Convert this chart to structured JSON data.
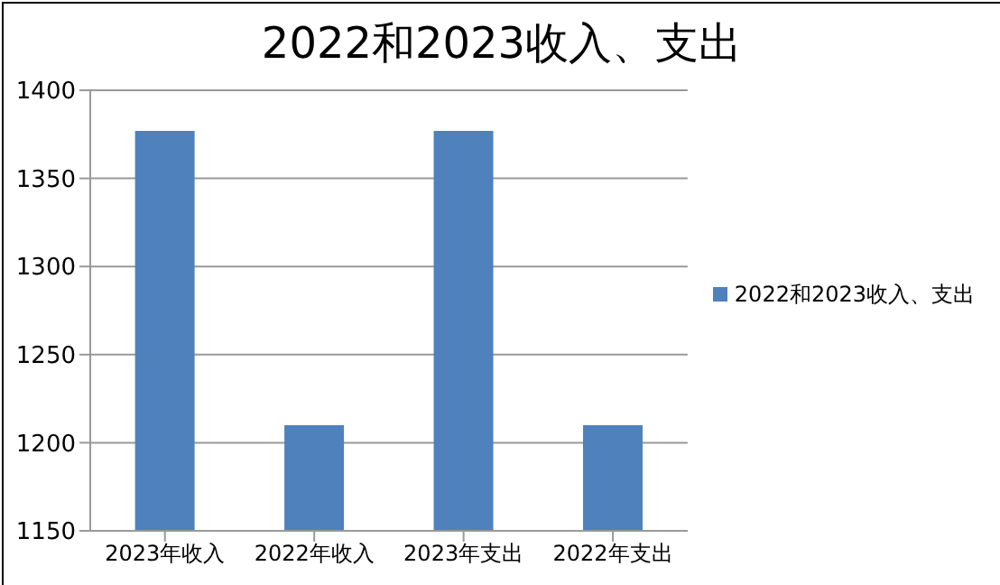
{
  "chart_data": {
    "type": "bar",
    "title": "2022和2023收入、支出",
    "categories": [
      "2023年收入",
      "2022年收入",
      "2023年支出",
      "2022年支出"
    ],
    "series": [
      {
        "name": "2022和2023收入、支出",
        "color": "#4f81bd",
        "values": [
          1377,
          1210,
          1377,
          1210
        ]
      }
    ],
    "ylim": [
      1150,
      1400
    ],
    "yticks": [
      1150,
      1200,
      1250,
      1300,
      1350,
      1400
    ],
    "grid": "y",
    "legend": "right"
  }
}
